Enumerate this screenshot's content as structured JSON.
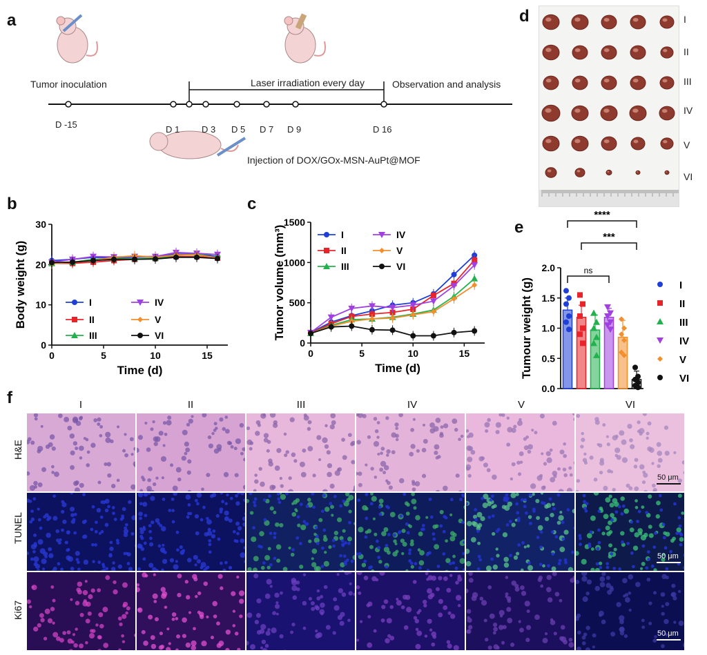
{
  "panel_labels": {
    "a": "a",
    "b": "b",
    "c": "c",
    "d": "d",
    "e": "e",
    "f": "f"
  },
  "timeline": {
    "tumor_inoculation": "Tumor inoculation",
    "laser": "Laser irradiation every day",
    "observation": "Observation and analysis",
    "injection": "Injection of DOX/GOx-MSN-AuPt@MOF",
    "days": [
      "D -15",
      "D 1",
      "D 3",
      "D 5",
      "D 7",
      "D 9",
      "D 16"
    ]
  },
  "chart_data": [
    {
      "type": "line",
      "id": "b",
      "xlabel": "Time (d)",
      "ylabel": "Body weight (g)",
      "xlim": [
        0,
        17
      ],
      "ylim": [
        0,
        30
      ],
      "xticks": [
        0,
        5,
        10,
        15
      ],
      "yticks": [
        0,
        10,
        20,
        30
      ],
      "x": [
        0,
        2,
        4,
        6,
        8,
        10,
        12,
        14,
        16
      ],
      "legend": [
        "I",
        "II",
        "III",
        "IV",
        "V",
        "VI"
      ],
      "series": [
        {
          "name": "I",
          "color": "#1f3fd6",
          "marker": "circle",
          "values": [
            21.0,
            21.3,
            21.8,
            21.6,
            21.9,
            22.0,
            22.6,
            22.6,
            22.0
          ]
        },
        {
          "name": "II",
          "color": "#e8242a",
          "marker": "square",
          "values": [
            20.3,
            20.3,
            20.6,
            21.0,
            21.3,
            21.5,
            22.0,
            22.0,
            21.6
          ]
        },
        {
          "name": "III",
          "color": "#22b14c",
          "marker": "triangle-up",
          "values": [
            20.3,
            20.6,
            21.3,
            21.5,
            21.5,
            21.6,
            22.3,
            22.6,
            22.5
          ]
        },
        {
          "name": "IV",
          "color": "#a040e0",
          "marker": "triangle-down",
          "values": [
            20.6,
            21.3,
            22.0,
            21.9,
            22.0,
            22.0,
            23.0,
            22.8,
            22.5
          ]
        },
        {
          "name": "V",
          "color": "#f28e2b",
          "marker": "diamond",
          "values": [
            20.2,
            20.6,
            21.0,
            21.8,
            22.2,
            21.8,
            22.4,
            22.4,
            21.7
          ]
        },
        {
          "name": "VI",
          "color": "#111111",
          "marker": "circle",
          "values": [
            20.5,
            20.6,
            21.0,
            21.3,
            21.3,
            21.4,
            21.8,
            21.8,
            21.5
          ]
        }
      ]
    },
    {
      "type": "line",
      "id": "c",
      "xlabel": "Time (d)",
      "ylabel": "Tumor volume (mm³)",
      "xlim": [
        0,
        17
      ],
      "ylim": [
        0,
        1500
      ],
      "xticks": [
        0,
        5,
        10,
        15
      ],
      "yticks": [
        0,
        500,
        1000,
        1500
      ],
      "x": [
        0,
        2,
        4,
        6,
        8,
        10,
        12,
        14,
        16
      ],
      "legend": [
        "I",
        "II",
        "III",
        "IV",
        "V",
        "VI"
      ],
      "series": [
        {
          "name": "I",
          "color": "#1f3fd6",
          "marker": "circle",
          "values": [
            130,
            260,
            340,
            400,
            470,
            500,
            610,
            850,
            1090
          ]
        },
        {
          "name": "II",
          "color": "#e8242a",
          "marker": "square",
          "values": [
            125,
            240,
            330,
            360,
            380,
            420,
            590,
            740,
            1030
          ]
        },
        {
          "name": "III",
          "color": "#22b14c",
          "marker": "triangle-up",
          "values": [
            120,
            220,
            290,
            300,
            320,
            360,
            410,
            580,
            800
          ]
        },
        {
          "name": "IV",
          "color": "#a040e0",
          "marker": "triangle-down",
          "values": [
            130,
            320,
            430,
            460,
            440,
            470,
            520,
            710,
            970
          ]
        },
        {
          "name": "V",
          "color": "#f28e2b",
          "marker": "diamond",
          "values": [
            120,
            210,
            270,
            300,
            310,
            350,
            390,
            550,
            720
          ]
        },
        {
          "name": "VI",
          "color": "#111111",
          "marker": "circle",
          "values": [
            120,
            200,
            210,
            165,
            160,
            90,
            90,
            130,
            150
          ]
        }
      ]
    },
    {
      "type": "bar",
      "id": "e",
      "ylabel": "Tumour weight (g)",
      "ylim": [
        0,
        2.0
      ],
      "yticks": [
        "0.0",
        "0.5",
        "1.0",
        "1.5",
        "2.0"
      ],
      "categories": [
        "I",
        "II",
        "III",
        "IV",
        "V",
        "VI"
      ],
      "values": [
        1.3,
        1.18,
        0.97,
        1.18,
        0.85,
        0.15
      ],
      "errors": [
        0.2,
        0.2,
        0.25,
        0.15,
        0.28,
        0.14
      ],
      "colors": [
        "#1f3fd6",
        "#e8242a",
        "#22b14c",
        "#a040e0",
        "#f28e2b",
        "#111111"
      ],
      "points": [
        [
          1.62,
          1.5,
          1.4,
          1.2,
          1.1,
          0.98
        ],
        [
          1.55,
          1.4,
          1.2,
          1.0,
          0.9,
          0.75
        ],
        [
          1.25,
          1.1,
          1.0,
          0.85,
          0.75,
          0.55
        ],
        [
          1.35,
          1.25,
          1.2,
          1.1,
          1.05,
          0.98
        ],
        [
          1.15,
          1.0,
          0.9,
          0.8,
          0.6,
          0.55
        ],
        [
          0.35,
          0.2,
          0.15,
          0.1,
          0.05,
          0.02
        ]
      ],
      "significance": [
        {
          "from": "I",
          "to": "VI",
          "label": "****"
        },
        {
          "from": "II",
          "to": "VI",
          "label": "***"
        },
        {
          "from": "I",
          "to": "IV",
          "label": "ns"
        }
      ],
      "legend": [
        "I",
        "II",
        "III",
        "IV",
        "V",
        "VI"
      ]
    }
  ],
  "panel_d": {
    "row_labels": [
      "I",
      "II",
      "III",
      "IV",
      "V",
      "VI"
    ]
  },
  "panel_f": {
    "columns": [
      "I",
      "II",
      "III",
      "IV",
      "V",
      "VI"
    ],
    "rows": [
      "H&E",
      "TUNEL",
      "Ki67"
    ],
    "scale_bar": "50 μm"
  }
}
